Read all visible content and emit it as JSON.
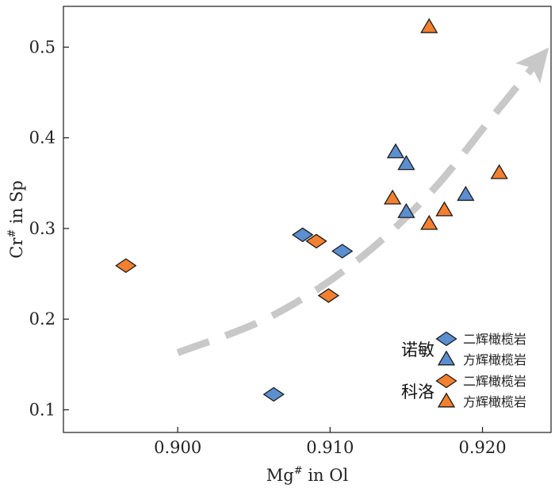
{
  "chart_data": {
    "type": "scatter",
    "xlabel": {
      "main": "Mg",
      "sup": "#",
      "rest": " in Ol"
    },
    "ylabel": {
      "main": "Cr",
      "sup": "#",
      "rest": " in Sp"
    },
    "xlim": [
      0.8925,
      0.9245
    ],
    "ylim": [
      0.075,
      0.545
    ],
    "xticks": [
      0.9,
      0.91,
      0.92
    ],
    "xtick_labels": [
      "0.900",
      "0.910",
      "0.920"
    ],
    "yticks": [
      0.1,
      0.2,
      0.3,
      0.4,
      0.5
    ],
    "ytick_labels": [
      "0.1",
      "0.2",
      "0.3",
      "0.4",
      "0.5"
    ],
    "grid": false,
    "legend_position": "bottom-right",
    "colors": {
      "nuomin": "#5b8fd0",
      "keluo": "#f28030",
      "arrow": "#c8c8c8",
      "stroke": "#1a1a1a"
    },
    "legend": [
      {
        "group": "诺敏",
        "items": [
          {
            "marker": "diamond",
            "color": "nuomin",
            "label": "二辉橄榄岩"
          },
          {
            "marker": "triangle",
            "color": "nuomin",
            "label": "方辉橄榄岩"
          }
        ]
      },
      {
        "group": "科洛",
        "items": [
          {
            "marker": "diamond",
            "color": "keluo",
            "label": "二辉橄榄岩"
          },
          {
            "marker": "triangle",
            "color": "keluo",
            "label": "方辉橄榄岩"
          }
        ]
      }
    ],
    "series": [
      {
        "locality": "诺敏",
        "rock": "二辉橄榄岩",
        "marker": "diamond",
        "color": "nuomin",
        "x": [
          0.9082,
          0.9108,
          0.9063
        ],
        "y": [
          0.293,
          0.275,
          0.117
        ]
      },
      {
        "locality": "诺敏",
        "rock": "方辉橄榄岩",
        "marker": "triangle",
        "color": "nuomin",
        "x": [
          0.9143,
          0.915,
          0.915,
          0.9189
        ],
        "y": [
          0.384,
          0.371,
          0.318,
          0.337
        ]
      },
      {
        "locality": "科洛",
        "rock": "二辉橄榄岩",
        "marker": "diamond",
        "color": "keluo",
        "x": [
          0.8966,
          0.9091,
          0.9099
        ],
        "y": [
          0.259,
          0.286,
          0.226
        ]
      },
      {
        "locality": "科洛",
        "rock": "方辉橄榄岩",
        "marker": "triangle",
        "color": "keluo",
        "x": [
          0.9141,
          0.9165,
          0.9165,
          0.9175,
          0.9211
        ],
        "y": [
          0.333,
          0.305,
          0.522,
          0.32,
          0.361
        ]
      }
    ],
    "trend_arrow": {
      "points": [
        [
          0.9,
          0.163
        ],
        [
          0.906,
          0.202
        ],
        [
          0.9115,
          0.261
        ],
        [
          0.9165,
          0.338
        ],
        [
          0.9205,
          0.42
        ],
        [
          0.9237,
          0.486
        ]
      ]
    }
  }
}
